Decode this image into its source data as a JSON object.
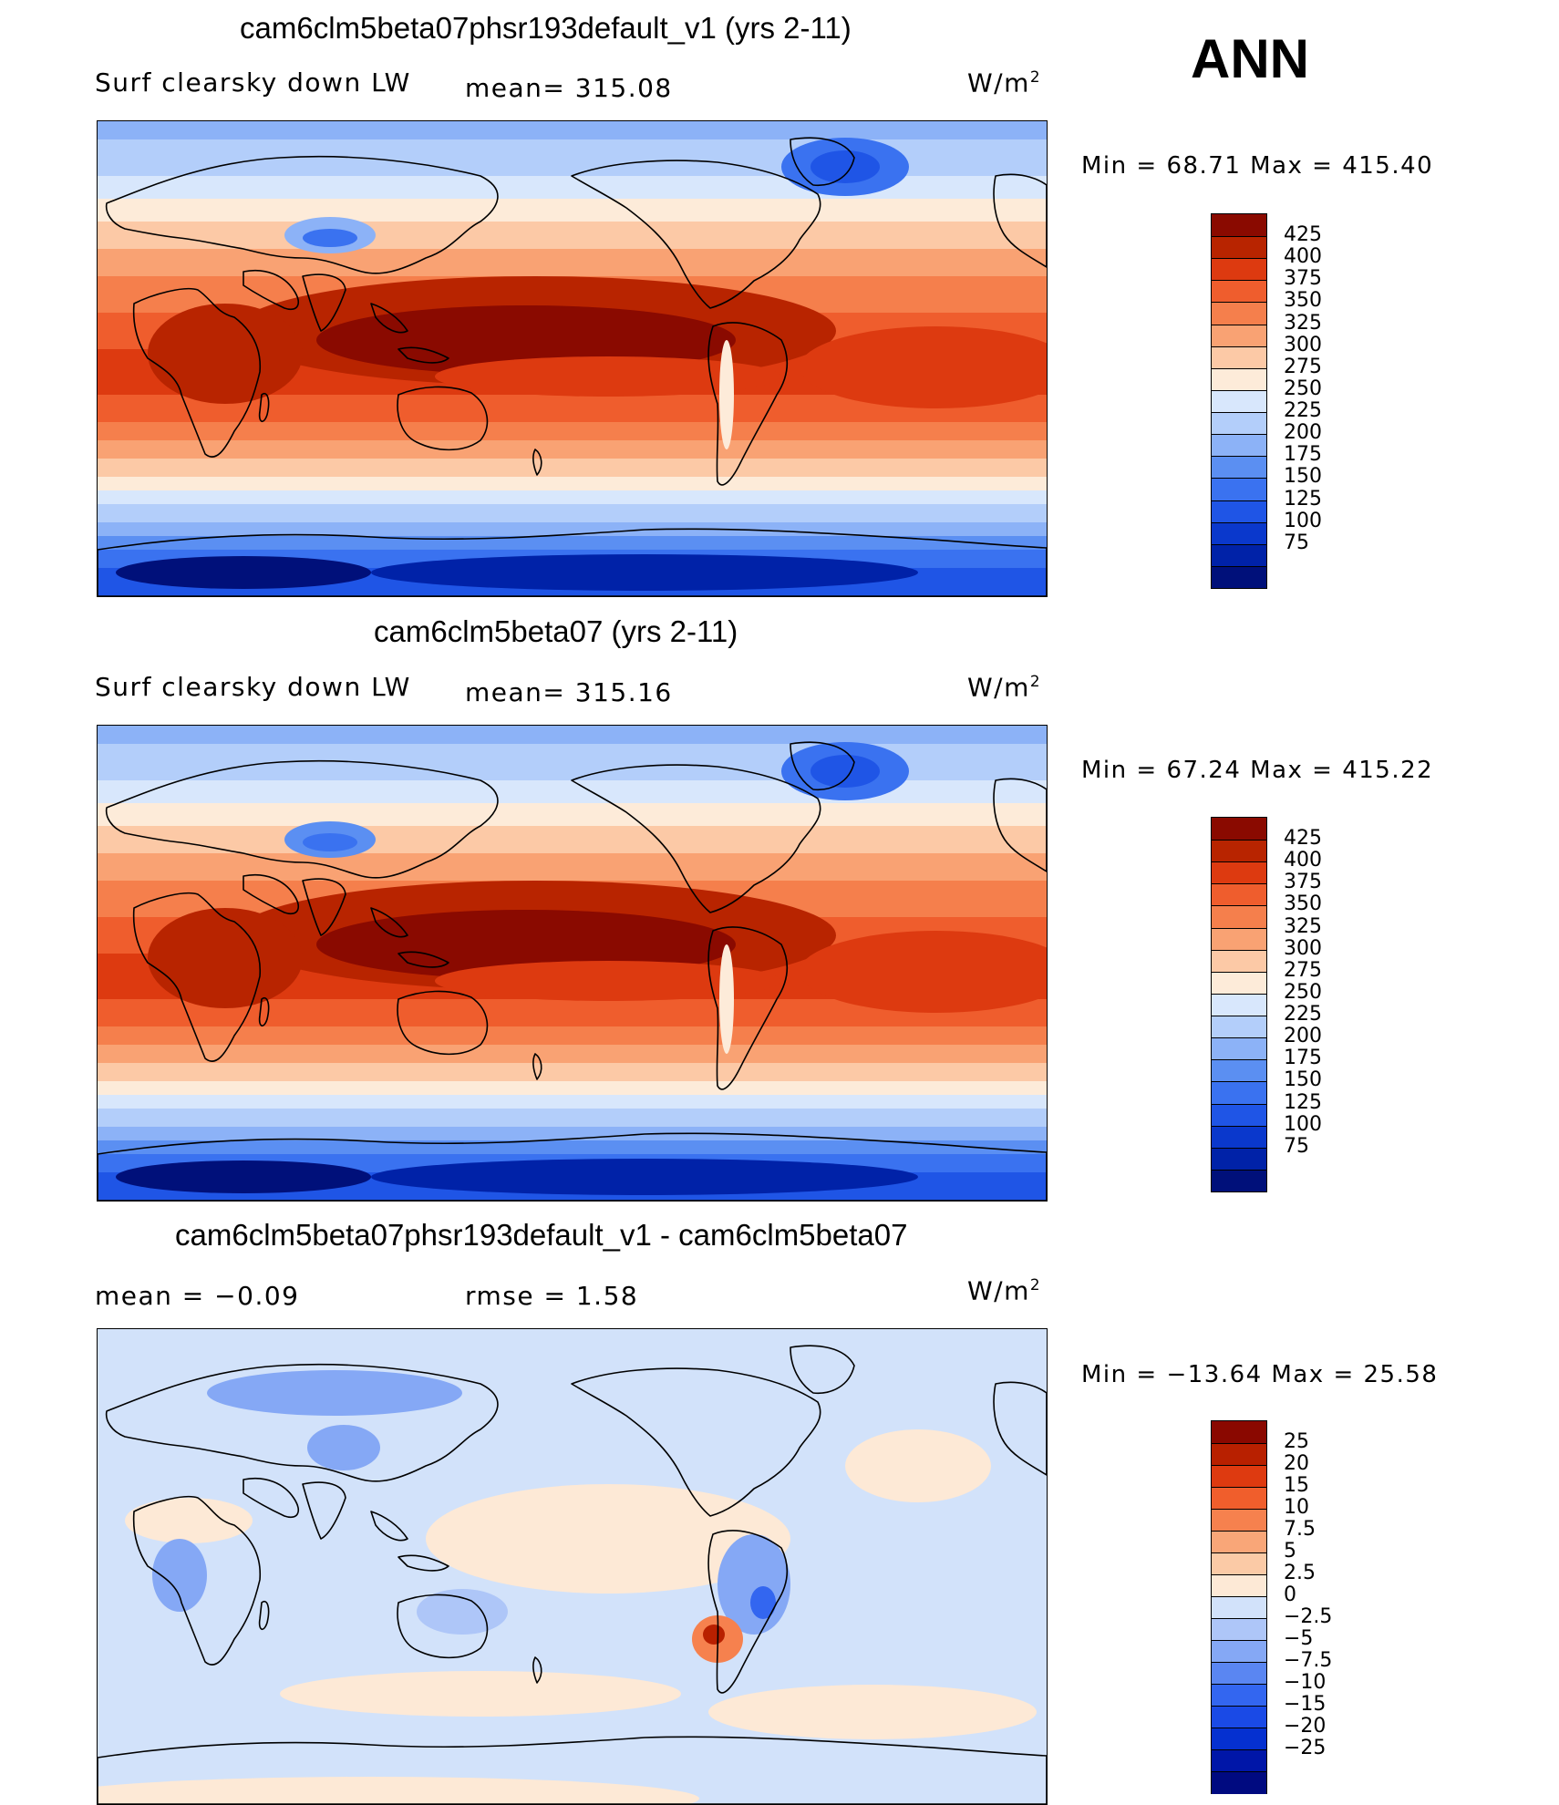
{
  "season": "ANN",
  "colors": {
    "abs_levels": [
      "#00107a",
      "#0022a8",
      "#0a38cc",
      "#1f55e6",
      "#3a72f0",
      "#5b8ff2",
      "#8cb2f7",
      "#b3cefa",
      "#d8e7fc",
      "#fdebd9",
      "#fcc9a6",
      "#f9a273",
      "#f57f4c",
      "#ef5d2d",
      "#dd3a10",
      "#b82400",
      "#8a0a00"
    ],
    "diff_levels": [
      "#000a80",
      "#0016a8",
      "#0530d0",
      "#1a4ae6",
      "#3366f0",
      "#5a86f2",
      "#85a8f5",
      "#aec6f8",
      "#d2e2fa",
      "#fde9d6",
      "#fbcaa6",
      "#f9a678",
      "#f6814e",
      "#f05e2c",
      "#de3a10",
      "#b82000",
      "#8a0800"
    ]
  },
  "panels": [
    {
      "title": "cam6clm5beta07phsr193default_v1 (yrs 2-11)",
      "left_label": "Surf clearsky down LW",
      "mid_label": "mean= 315.08",
      "units": "W/m",
      "units_sup": "2",
      "min_max": "Min =   68.71 Max = 415.40"
    },
    {
      "title": "cam6clm5beta07 (yrs 2-11)",
      "left_label": "Surf clearsky down LW",
      "mid_label": "mean= 315.16",
      "units": "W/m",
      "units_sup": "2",
      "min_max": "Min =   67.24 Max = 415.22"
    },
    {
      "title": "cam6clm5beta07phsr193default_v1 - cam6clm5beta07",
      "left_label": "mean =   −0.09",
      "mid_label": "rmse =    1.58",
      "units": "W/m",
      "units_sup": "2",
      "min_max": "Min = −13.64 Max =   25.58"
    }
  ],
  "chart_data": [
    {
      "type": "heatmap",
      "title": "cam6clm5beta07phsr193default_v1 (yrs 2-11)",
      "variable": "Surf clearsky down LW",
      "units": "W/m2",
      "mean": 315.08,
      "min": 68.71,
      "max": 415.4,
      "colorbar_levels": [
        "425",
        "400",
        "375",
        "350",
        "325",
        "300",
        "275",
        "250",
        "225",
        "200",
        "175",
        "150",
        "125",
        "100",
        "75"
      ]
    },
    {
      "type": "heatmap",
      "title": "cam6clm5beta07 (yrs 2-11)",
      "variable": "Surf clearsky down LW",
      "units": "W/m2",
      "mean": 315.16,
      "min": 67.24,
      "max": 415.22,
      "colorbar_levels": [
        "425",
        "400",
        "375",
        "350",
        "325",
        "300",
        "275",
        "250",
        "225",
        "200",
        "175",
        "150",
        "125",
        "100",
        "75"
      ]
    },
    {
      "type": "heatmap",
      "title": "cam6clm5beta07phsr193default_v1 - cam6clm5beta07",
      "units": "W/m2",
      "mean": -0.09,
      "rmse": 1.58,
      "min": -13.64,
      "max": 25.58,
      "colorbar_levels": [
        "25",
        "20",
        "15",
        "10",
        "7.5",
        "5",
        "2.5",
        "0",
        "−2.5",
        "−5",
        "−7.5",
        "−10",
        "−15",
        "−20",
        "−25"
      ]
    }
  ]
}
